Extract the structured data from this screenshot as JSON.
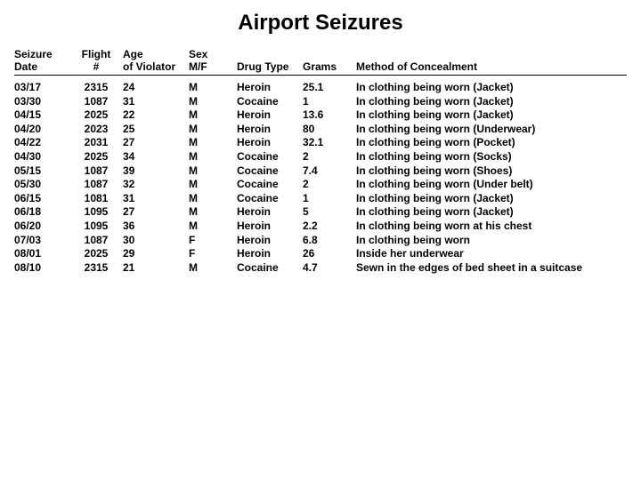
{
  "title": "Airport Seizures",
  "columns": {
    "date": "Seizure\nDate",
    "flight": "Flight\n#",
    "age": "Age\nof Violator",
    "sex": "Sex\nM/F",
    "drug": "Drug Type",
    "grams": "Grams",
    "method": "Method of Concealment"
  },
  "rows": [
    {
      "date": "03/17",
      "flight": "2315",
      "age": "24",
      "sex": "M",
      "drug": "Heroin",
      "grams": "25.1",
      "method": "In clothing being worn (Jacket)"
    },
    {
      "date": "03/30",
      "flight": "1087",
      "age": "31",
      "sex": "M",
      "drug": "Cocaine",
      "grams": "1",
      "method": "In clothing being worn (Jacket)"
    },
    {
      "date": "04/15",
      "flight": "2025",
      "age": "22",
      "sex": "M",
      "drug": "Heroin",
      "grams": "13.6",
      "method": "In clothing being worn (Jacket)"
    },
    {
      "date": "04/20",
      "flight": "2023",
      "age": "25",
      "sex": "M",
      "drug": "Heroin",
      "grams": "80",
      "method": "In clothing being worn (Underwear)"
    },
    {
      "date": "04/22",
      "flight": "2031",
      "age": "27",
      "sex": "M",
      "drug": "Heroin",
      "grams": "32.1",
      "method": "In clothing being worn (Pocket)"
    },
    {
      "date": "04/30",
      "flight": "2025",
      "age": "34",
      "sex": "M",
      "drug": "Cocaine",
      "grams": "2",
      "method": "In clothing being worn (Socks)"
    },
    {
      "date": "05/15",
      "flight": "1087",
      "age": "39",
      "sex": "M",
      "drug": "Cocaine",
      "grams": "7.4",
      "method": "In clothing being worn (Shoes)"
    },
    {
      "date": "05/30",
      "flight": "1087",
      "age": "32",
      "sex": "M",
      "drug": "Cocaine",
      "grams": "2",
      "method": "In clothing being worn (Under belt)"
    },
    {
      "date": "06/15",
      "flight": "1081",
      "age": "31",
      "sex": "M",
      "drug": "Cocaine",
      "grams": "1",
      "method": "In clothing being worn (Jacket)"
    },
    {
      "date": "06/18",
      "flight": "1095",
      "age": "27",
      "sex": "M",
      "drug": "Heroin",
      "grams": "5",
      "method": "In clothing being worn (Jacket)"
    },
    {
      "date": "06/20",
      "flight": "1095",
      "age": "36",
      "sex": "M",
      "drug": "Heroin",
      "grams": "2.2",
      "method": "In clothing being worn at his chest"
    },
    {
      "date": "07/03",
      "flight": "1087",
      "age": "30",
      "sex": "F",
      "drug": "Heroin",
      "grams": "6.8",
      "method": "In clothing being worn"
    },
    {
      "date": "08/01",
      "flight": "2025",
      "age": "29",
      "sex": "F",
      "drug": "Heroin",
      "grams": "26",
      "method": "Inside her underwear"
    },
    {
      "date": "08/10",
      "flight": "2315",
      "age": "21",
      "sex": "M",
      "drug": "Cocaine",
      "grams": "4.7",
      "method": "Sewn in the edges of bed sheet in a suitcase"
    }
  ]
}
